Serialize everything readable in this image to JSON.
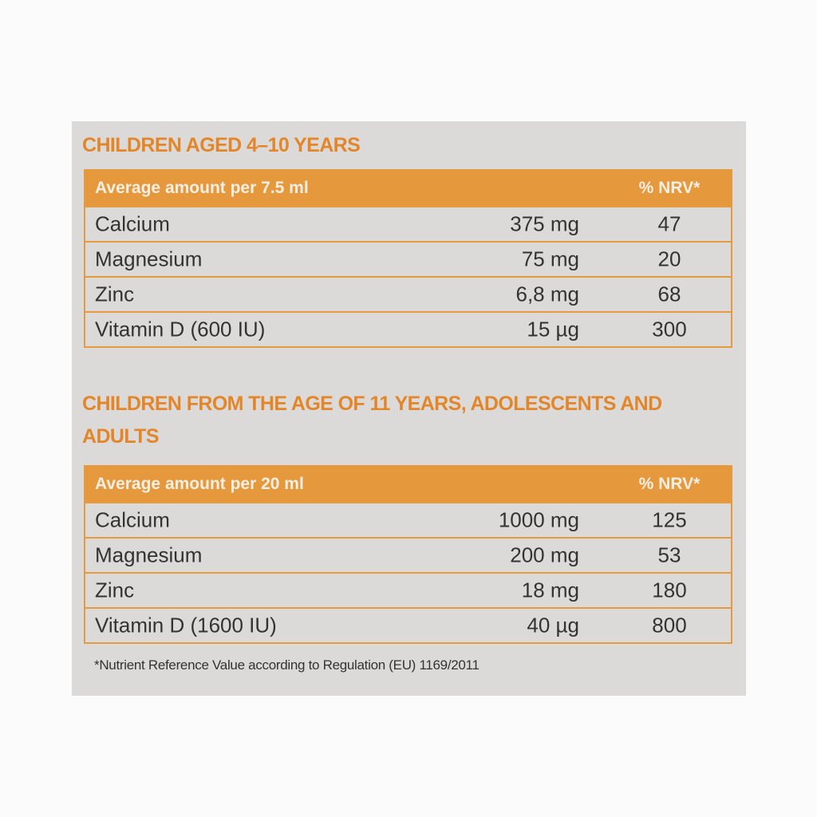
{
  "sections": [
    {
      "title": "CHILDREN AGED 4–10 YEARS",
      "header": [
        "Average amount per 7.5 ml",
        "% NRV*"
      ],
      "rows": [
        [
          "Calcium",
          "375 mg",
          "47"
        ],
        [
          "Magnesium",
          "75 mg",
          "20"
        ],
        [
          "Zinc",
          "6,8 mg",
          "68"
        ],
        [
          "Vitamin D (600 IU)",
          "15 µg",
          "300"
        ]
      ]
    },
    {
      "title": "CHILDREN FROM THE AGE OF 11 YEARS, ADOLESCENTS AND ADULTS",
      "header": [
        "Average amount per 20 ml",
        "% NRV*"
      ],
      "rows": [
        [
          "Calcium",
          "1000 mg",
          "125"
        ],
        [
          "Magnesium",
          "200 mg",
          "53"
        ],
        [
          "Zinc",
          "18 mg",
          "180"
        ],
        [
          "Vitamin D (1600 IU)",
          "40 µg",
          "800"
        ]
      ]
    }
  ],
  "footnote": "*Nutrient Reference Value according to Regulation (EU) 1169/2011"
}
